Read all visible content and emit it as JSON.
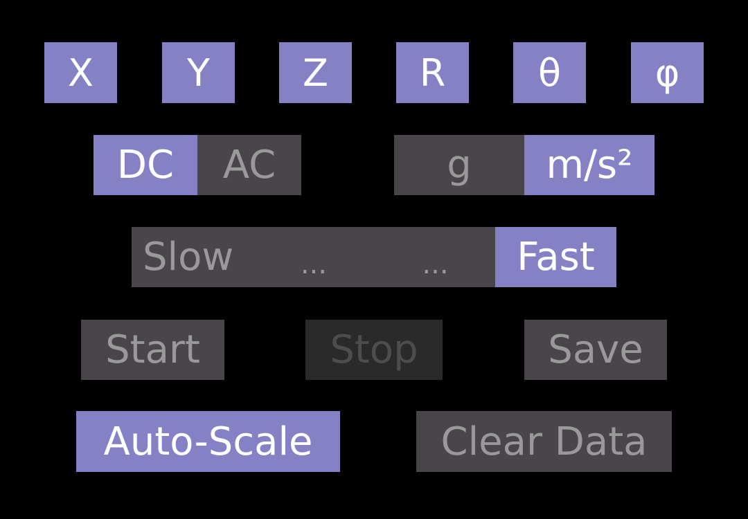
{
  "axis_buttons": [
    {
      "label": "X",
      "active": true
    },
    {
      "label": "Y",
      "active": true
    },
    {
      "label": "Z",
      "active": true
    },
    {
      "label": "R",
      "active": true
    },
    {
      "label": "θ",
      "active": true
    },
    {
      "label": "φ",
      "active": true
    }
  ],
  "coupling": {
    "dc_label": "DC",
    "ac_label": "AC",
    "selected": "DC"
  },
  "units": {
    "g_label": "g",
    "ms2_label": "m/s²",
    "selected": "m/s²"
  },
  "speed": {
    "slow_label": "Slow",
    "mid1_label": "...",
    "mid2_label": "...",
    "fast_label": "Fast",
    "selected": "Fast"
  },
  "controls": {
    "start_label": "Start",
    "stop_label": "Stop",
    "save_label": "Save",
    "stop_enabled": false
  },
  "tools": {
    "autoscale_label": "Auto-Scale",
    "autoscale_active": true,
    "clear_label": "Clear Data"
  },
  "colors": {
    "background": "#000000",
    "active": "#8681c4",
    "inactive": "#49454a",
    "disabled": "#2b2a2b",
    "active_text": "#ffffff",
    "inactive_text": "#9a999a",
    "disabled_text": "#4e4c4f"
  }
}
